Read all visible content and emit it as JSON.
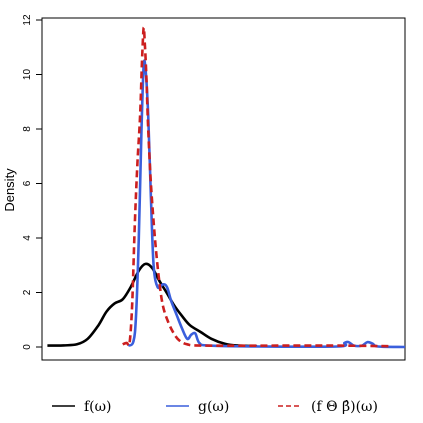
{
  "chart_data": {
    "type": "line",
    "title": "",
    "xlabel": "",
    "ylabel": "Density",
    "xlim": [
      -1.0,
      12.5
    ],
    "ylim": [
      0,
      12
    ],
    "yticks": [
      0,
      2,
      4,
      6,
      8,
      10,
      12
    ],
    "x_axis_visible": false,
    "grid": false,
    "legend_position": "bottom",
    "series": [
      {
        "name": "f(ω)",
        "color": "#000000",
        "linestyle": "solid",
        "points": [
          [
            -0.8,
            0.05
          ],
          [
            -0.2,
            0.06
          ],
          [
            0.3,
            0.1
          ],
          [
            0.7,
            0.3
          ],
          [
            1.1,
            0.8
          ],
          [
            1.4,
            1.3
          ],
          [
            1.7,
            1.6
          ],
          [
            2.0,
            1.75
          ],
          [
            2.3,
            2.2
          ],
          [
            2.6,
            2.8
          ],
          [
            2.85,
            3.05
          ],
          [
            3.1,
            2.9
          ],
          [
            3.35,
            2.45
          ],
          [
            3.6,
            2.05
          ],
          [
            3.9,
            1.55
          ],
          [
            4.2,
            1.15
          ],
          [
            4.5,
            0.8
          ],
          [
            4.9,
            0.55
          ],
          [
            5.3,
            0.3
          ],
          [
            5.8,
            0.12
          ],
          [
            6.3,
            0.05
          ],
          [
            7.0,
            0.03
          ]
        ]
      },
      {
        "name": "g(ω)",
        "color": "#3a5fdc",
        "linestyle": "solid",
        "points": [
          [
            2.2,
            0.05
          ],
          [
            2.4,
            0.2
          ],
          [
            2.5,
            1.2
          ],
          [
            2.6,
            4.0
          ],
          [
            2.7,
            8.0
          ],
          [
            2.78,
            10.3
          ],
          [
            2.85,
            10.2
          ],
          [
            2.95,
            8.5
          ],
          [
            3.05,
            5.5
          ],
          [
            3.15,
            3.0
          ],
          [
            3.3,
            2.2
          ],
          [
            3.5,
            2.3
          ],
          [
            3.65,
            2.2
          ],
          [
            3.8,
            1.7
          ],
          [
            4.0,
            1.2
          ],
          [
            4.2,
            0.7
          ],
          [
            4.4,
            0.3
          ],
          [
            4.55,
            0.45
          ],
          [
            4.7,
            0.5
          ],
          [
            4.85,
            0.15
          ],
          [
            5.2,
            0.05
          ],
          [
            7.0,
            0.02
          ],
          [
            10.0,
            0.02
          ],
          [
            10.25,
            0.15
          ],
          [
            10.4,
            0.18
          ],
          [
            10.6,
            0.05
          ],
          [
            10.9,
            0.05
          ],
          [
            11.1,
            0.18
          ],
          [
            11.3,
            0.12
          ],
          [
            11.5,
            0.02
          ],
          [
            12.5,
            0.0
          ]
        ]
      },
      {
        "name": "(f Θ β̂)(ω)",
        "color": "#cc1f1f",
        "linestyle": "dashed",
        "points": [
          [
            2.0,
            0.1
          ],
          [
            2.15,
            0.15
          ],
          [
            2.25,
            0.1
          ],
          [
            2.35,
            1.5
          ],
          [
            2.45,
            4.5
          ],
          [
            2.55,
            6.8
          ],
          [
            2.65,
            8.5
          ],
          [
            2.72,
            10.5
          ],
          [
            2.78,
            11.7
          ],
          [
            2.82,
            11.2
          ],
          [
            2.88,
            10.0
          ],
          [
            2.95,
            8.0
          ],
          [
            3.05,
            6.0
          ],
          [
            3.2,
            4.0
          ],
          [
            3.35,
            2.5
          ],
          [
            3.5,
            1.5
          ],
          [
            3.7,
            0.9
          ],
          [
            3.9,
            0.5
          ],
          [
            4.1,
            0.25
          ],
          [
            4.4,
            0.1
          ],
          [
            5.0,
            0.05
          ],
          [
            8.0,
            0.05
          ],
          [
            10.0,
            0.05
          ],
          [
            12.0,
            0.03
          ]
        ]
      }
    ],
    "legend": [
      {
        "label": "f(ω)",
        "color": "#000000",
        "dashed": false
      },
      {
        "label": "g(ω)",
        "color": "#3a5fdc",
        "dashed": false
      },
      {
        "label": "(f Θ β̂)(ω)",
        "color": "#cc1f1f",
        "dashed": true
      }
    ]
  }
}
